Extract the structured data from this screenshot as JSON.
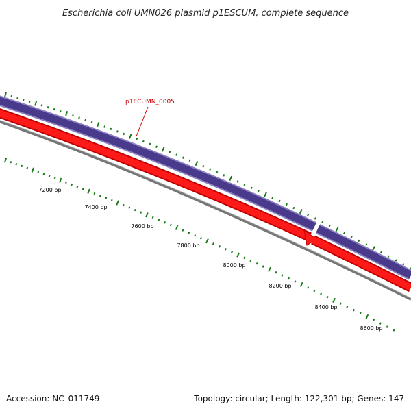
{
  "title": "Escherichia coli UMN026 plasmid p1ESCUM, complete sequence",
  "footer": {
    "accession": "Accession: NC_011749",
    "summary": "Topology: circular; Length: 122,301 bp; Genes: 147"
  },
  "gene_label": "p1ECUMN_0005",
  "scale_labels": [
    "7200 bp",
    "7400 bp",
    "7600 bp",
    "7800 bp",
    "8000 bp",
    "8200 bp",
    "8400 bp",
    "8600 bp"
  ],
  "colors": {
    "forward_track": "#4a3a8c",
    "forward_track_edge": "#8a7fc0",
    "reverse_track": "#ff0000",
    "reverse_track_edge": "#c00000",
    "backbone": "#777777",
    "tick": "#1a7a1a",
    "gene_label": "#cc0000"
  }
}
